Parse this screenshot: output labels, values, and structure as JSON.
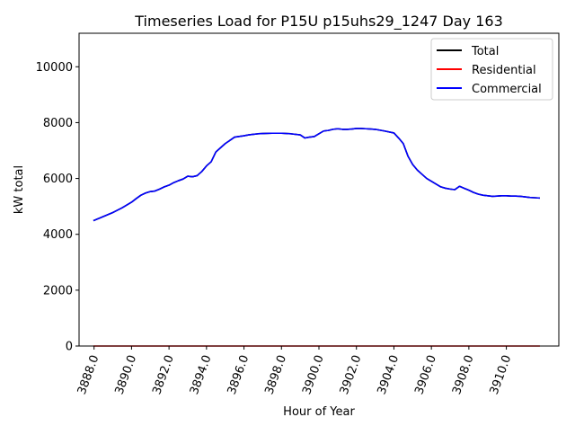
{
  "chart_data": {
    "type": "line",
    "title": "Timeseries Load for P15U p15uhs29_1247  Day 163",
    "xlabel": "Hour of Year",
    "ylabel": "kW total",
    "xlim": [
      3887.2,
      3912.8
    ],
    "ylim": [
      0,
      11200
    ],
    "x_ticks": [
      3888,
      3890,
      3892,
      3894,
      3896,
      3898,
      3900,
      3902,
      3904,
      3906,
      3908,
      3910
    ],
    "x_tick_labels": [
      "3888.0",
      "3890.0",
      "3892.0",
      "3894.0",
      "3896.0",
      "3898.0",
      "3900.0",
      "3902.0",
      "3904.0",
      "3906.0",
      "3908.0",
      "3910.0"
    ],
    "y_ticks": [
      0,
      2000,
      4000,
      6000,
      8000,
      10000
    ],
    "y_tick_labels": [
      "0",
      "2000",
      "4000",
      "6000",
      "8000",
      "10000"
    ],
    "legend_position": "top-right",
    "series": [
      {
        "name": "Total",
        "color": "#000000",
        "x": [
          3888.0,
          3888.5,
          3889.0,
          3889.5,
          3890.0,
          3890.25,
          3890.5,
          3890.75,
          3891.0,
          3891.25,
          3891.5,
          3891.75,
          3892.0,
          3892.25,
          3892.5,
          3892.75,
          3893.0,
          3893.25,
          3893.5,
          3893.75,
          3894.0,
          3894.25,
          3894.5,
          3894.75,
          3895.0,
          3895.5,
          3896.0,
          3896.25,
          3896.5,
          3896.75,
          3897.0,
          3897.5,
          3898.0,
          3898.5,
          3899.0,
          3899.25,
          3899.5,
          3899.75,
          3900.0,
          3900.25,
          3900.5,
          3900.75,
          3901.0,
          3901.25,
          3901.5,
          3901.75,
          3902.0,
          3902.25,
          3902.5,
          3902.75,
          3903.0,
          3903.5,
          3904.0,
          3904.25,
          3904.5,
          3904.75,
          3905.0,
          3905.25,
          3905.5,
          3905.75,
          3906.0,
          3906.25,
          3906.5,
          3906.75,
          3907.0,
          3907.25,
          3907.5,
          3907.75,
          3908.0,
          3908.25,
          3908.5,
          3908.75,
          3909.0,
          3909.25,
          3909.5,
          3909.75,
          3910.0,
          3910.25,
          3910.5,
          3910.75,
          3911.0,
          3911.25,
          3911.5,
          3911.75
        ],
        "values": [
          4500,
          4640,
          4780,
          4950,
          5150,
          5280,
          5400,
          5480,
          5530,
          5550,
          5620,
          5700,
          5760,
          5850,
          5920,
          5980,
          6080,
          6060,
          6100,
          6250,
          6450,
          6600,
          6950,
          7100,
          7250,
          7480,
          7530,
          7560,
          7580,
          7600,
          7610,
          7620,
          7620,
          7600,
          7560,
          7450,
          7480,
          7500,
          7600,
          7700,
          7720,
          7760,
          7780,
          7760,
          7760,
          7770,
          7790,
          7790,
          7780,
          7770,
          7760,
          7700,
          7630,
          7450,
          7250,
          6800,
          6500,
          6300,
          6150,
          6000,
          5900,
          5800,
          5700,
          5650,
          5620,
          5600,
          5720,
          5650,
          5580,
          5500,
          5440,
          5400,
          5380,
          5360,
          5370,
          5380,
          5380,
          5370,
          5370,
          5360,
          5340,
          5320,
          5310,
          5300
        ]
      },
      {
        "name": "Residential",
        "color": "#ff0000",
        "x": [
          3888.0,
          3911.75
        ],
        "values": [
          0,
          0
        ]
      },
      {
        "name": "Commercial",
        "color": "#0000ff",
        "x": [
          3888.0,
          3888.5,
          3889.0,
          3889.5,
          3890.0,
          3890.25,
          3890.5,
          3890.75,
          3891.0,
          3891.25,
          3891.5,
          3891.75,
          3892.0,
          3892.25,
          3892.5,
          3892.75,
          3893.0,
          3893.25,
          3893.5,
          3893.75,
          3894.0,
          3894.25,
          3894.5,
          3894.75,
          3895.0,
          3895.5,
          3896.0,
          3896.25,
          3896.5,
          3896.75,
          3897.0,
          3897.5,
          3898.0,
          3898.5,
          3899.0,
          3899.25,
          3899.5,
          3899.75,
          3900.0,
          3900.25,
          3900.5,
          3900.75,
          3901.0,
          3901.25,
          3901.5,
          3901.75,
          3902.0,
          3902.25,
          3902.5,
          3902.75,
          3903.0,
          3903.5,
          3904.0,
          3904.25,
          3904.5,
          3904.75,
          3905.0,
          3905.25,
          3905.5,
          3905.75,
          3906.0,
          3906.25,
          3906.5,
          3906.75,
          3907.0,
          3907.25,
          3907.5,
          3907.75,
          3908.0,
          3908.25,
          3908.5,
          3908.75,
          3909.0,
          3909.25,
          3909.5,
          3909.75,
          3910.0,
          3910.25,
          3910.5,
          3910.75,
          3911.0,
          3911.25,
          3911.5,
          3911.75
        ],
        "values": [
          4500,
          4640,
          4780,
          4950,
          5150,
          5280,
          5400,
          5480,
          5530,
          5550,
          5620,
          5700,
          5760,
          5850,
          5920,
          5980,
          6080,
          6060,
          6100,
          6250,
          6450,
          6600,
          6950,
          7100,
          7250,
          7480,
          7530,
          7560,
          7580,
          7600,
          7610,
          7620,
          7620,
          7600,
          7560,
          7450,
          7480,
          7500,
          7600,
          7700,
          7720,
          7760,
          7780,
          7760,
          7760,
          7770,
          7790,
          7790,
          7780,
          7770,
          7760,
          7700,
          7630,
          7450,
          7250,
          6800,
          6500,
          6300,
          6150,
          6000,
          5900,
          5800,
          5700,
          5650,
          5620,
          5600,
          5720,
          5650,
          5580,
          5500,
          5440,
          5400,
          5380,
          5360,
          5370,
          5380,
          5380,
          5370,
          5370,
          5360,
          5340,
          5320,
          5310,
          5300
        ]
      }
    ]
  }
}
